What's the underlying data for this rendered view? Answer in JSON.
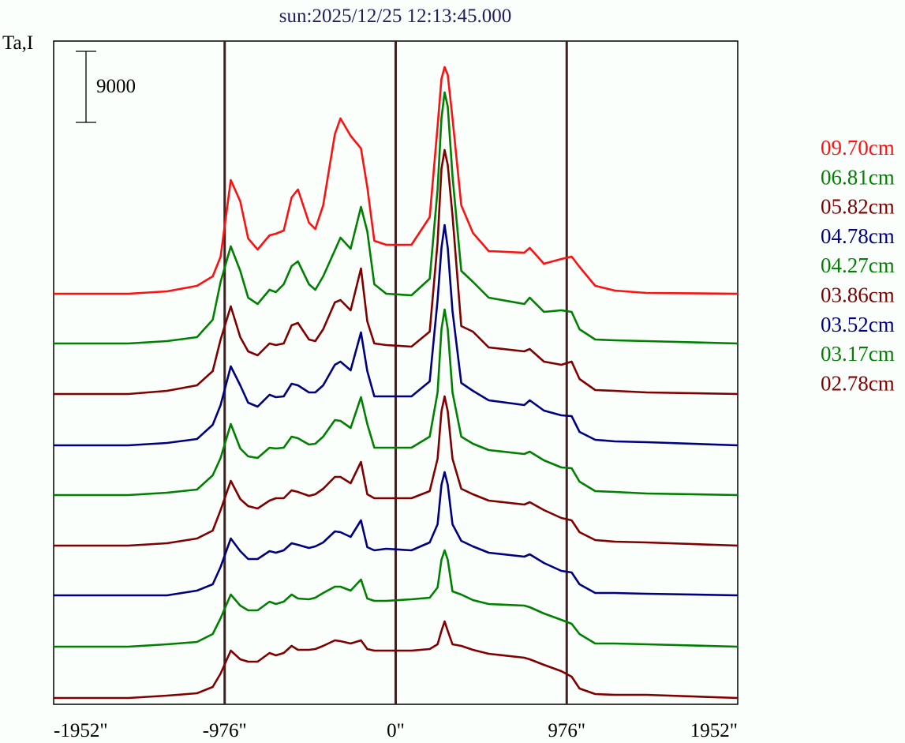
{
  "chart_data": {
    "type": "line",
    "title": "sun:2025/12/25 12:13:45.000",
    "ylabel": "Ta,I",
    "xlabel": "",
    "scale_bar": {
      "label": "9000",
      "value": 9000
    },
    "xlim": [
      -1952,
      1952
    ],
    "x_ticks": [
      {
        "value": -1952,
        "label": "-1952\""
      },
      {
        "value": -976,
        "label": "-976\""
      },
      {
        "value": 0,
        "label": "0\""
      },
      {
        "value": 976,
        "label": "976\""
      },
      {
        "value": 1952,
        "label": "1952\""
      }
    ],
    "reference_lines_x": [
      -976,
      0,
      976
    ],
    "reference_line_color": "#402020",
    "grid": false,
    "legend_position": "right",
    "x": [
      -1952,
      -1526,
      -1305,
      -1134,
      -1044,
      -999,
      -941,
      -887,
      -842,
      -788,
      -720,
      -684,
      -639,
      -594,
      -558,
      -495,
      -459,
      -414,
      -347,
      -315,
      -257,
      -198,
      -162,
      -122,
      -54,
      90,
      194,
      239,
      261,
      279,
      297,
      324,
      374,
      441,
      531,
      734,
      765,
      846,
      945,
      1004,
      1049,
      1139,
      1251,
      1431,
      1952
    ],
    "series": [
      {
        "name": "09.70cm",
        "color": "#ff1010",
        "offset": 51200,
        "values": [
          0,
          0,
          300,
          1000,
          2200,
          4700,
          14400,
          11700,
          7000,
          5600,
          7400,
          7600,
          8000,
          12200,
          13200,
          9000,
          8200,
          11200,
          20200,
          22200,
          20000,
          18400,
          13500,
          6700,
          6200,
          6200,
          9700,
          21200,
          27200,
          28700,
          27700,
          22200,
          11200,
          7700,
          5400,
          5200,
          5800,
          3800,
          4400,
          4700,
          3400,
          1000,
          400,
          100,
          0
        ]
      },
      {
        "name": "06.81cm",
        "color": "#008000",
        "offset": 44900,
        "values": [
          0,
          0,
          300,
          800,
          3000,
          7800,
          12300,
          9200,
          5800,
          5000,
          6800,
          6500,
          7500,
          9800,
          10400,
          7500,
          6800,
          8500,
          11800,
          13400,
          12000,
          17300,
          14200,
          7500,
          6300,
          6100,
          8200,
          19500,
          28500,
          31800,
          30000,
          21200,
          9200,
          7800,
          5800,
          5000,
          5800,
          4000,
          4200,
          4000,
          1800,
          500,
          400,
          300,
          0
        ]
      },
      {
        "name": "05.82cm",
        "color": "#800000",
        "offset": 38500,
        "values": [
          0,
          0,
          400,
          1100,
          2900,
          6900,
          11100,
          7200,
          5400,
          4900,
          6400,
          6200,
          6400,
          8700,
          9000,
          6900,
          6700,
          8200,
          11600,
          11900,
          10600,
          15900,
          9200,
          6400,
          6200,
          6000,
          7900,
          19200,
          28500,
          30900,
          29000,
          22600,
          8600,
          7900,
          5900,
          5400,
          5700,
          4100,
          3700,
          4100,
          1900,
          500,
          400,
          200,
          0
        ]
      },
      {
        "name": "04.78cm",
        "color": "#000080",
        "offset": 32000,
        "values": [
          0,
          0,
          300,
          800,
          2600,
          5100,
          10000,
          7600,
          5400,
          4900,
          6400,
          6100,
          6200,
          7800,
          7600,
          6700,
          6700,
          7600,
          10200,
          10600,
          9500,
          14300,
          9400,
          6200,
          6200,
          6200,
          8100,
          18400,
          25000,
          27900,
          25000,
          17000,
          7900,
          6900,
          5700,
          5100,
          5700,
          4400,
          3800,
          3700,
          1700,
          700,
          500,
          400,
          0
        ]
      },
      {
        "name": "04.27cm",
        "color": "#008000",
        "offset": 25700,
        "values": [
          0,
          0,
          300,
          700,
          2500,
          4700,
          9000,
          5900,
          4900,
          4700,
          6000,
          5900,
          6000,
          7400,
          7200,
          6400,
          6500,
          7400,
          9500,
          9400,
          8500,
          12400,
          9000,
          6000,
          6000,
          6000,
          7400,
          13000,
          21000,
          23500,
          21000,
          13000,
          7400,
          6500,
          5700,
          5200,
          5500,
          4400,
          3500,
          3400,
          1700,
          500,
          400,
          200,
          0
        ]
      },
      {
        "name": "03.86cm",
        "color": "#800000",
        "offset": 19300,
        "values": [
          0,
          0,
          300,
          900,
          1900,
          4500,
          8200,
          5900,
          5000,
          4700,
          5700,
          6000,
          6000,
          7000,
          6800,
          6300,
          6500,
          7200,
          8700,
          8700,
          7900,
          10600,
          6500,
          6000,
          6000,
          6000,
          6900,
          11000,
          17000,
          18900,
          17000,
          11000,
          7200,
          6500,
          5700,
          5200,
          5500,
          4500,
          3500,
          3200,
          1700,
          700,
          500,
          400,
          0
        ]
      },
      {
        "name": "03.52cm",
        "color": "#000080",
        "offset": 13000,
        "values": [
          0,
          0,
          0,
          600,
          1400,
          3600,
          7200,
          5600,
          4600,
          4600,
          5600,
          5400,
          5700,
          6600,
          6400,
          6000,
          6200,
          6700,
          8100,
          8000,
          7400,
          9500,
          6100,
          5700,
          5900,
          5700,
          6700,
          9000,
          14000,
          15600,
          14000,
          9000,
          6900,
          6200,
          5400,
          4900,
          5200,
          4100,
          3100,
          2900,
          1400,
          300,
          300,
          200,
          0
        ]
      },
      {
        "name": "03.17cm",
        "color": "#008000",
        "offset": 6500,
        "values": [
          0,
          0,
          300,
          600,
          1600,
          3600,
          6600,
          5200,
          4600,
          4600,
          5700,
          5400,
          5700,
          6600,
          6100,
          6000,
          6200,
          6800,
          7600,
          7600,
          7100,
          8500,
          6100,
          5800,
          5800,
          6000,
          6200,
          7500,
          11000,
          12200,
          11000,
          7000,
          6600,
          5900,
          5400,
          5200,
          5000,
          4200,
          3400,
          2900,
          1600,
          400,
          400,
          300,
          0
        ]
      },
      {
        "name": "02.78cm",
        "color": "#800000",
        "offset": 0,
        "values": [
          0,
          0,
          300,
          600,
          1400,
          3100,
          6000,
          4900,
          4600,
          4600,
          5700,
          5400,
          5700,
          6600,
          6100,
          6100,
          6200,
          6600,
          7300,
          7200,
          6900,
          7300,
          6200,
          6000,
          6000,
          6000,
          6200,
          6800,
          8500,
          9700,
          8500,
          6800,
          6600,
          6100,
          5600,
          5100,
          4900,
          4200,
          3400,
          2700,
          1200,
          500,
          400,
          400,
          0
        ]
      }
    ]
  }
}
